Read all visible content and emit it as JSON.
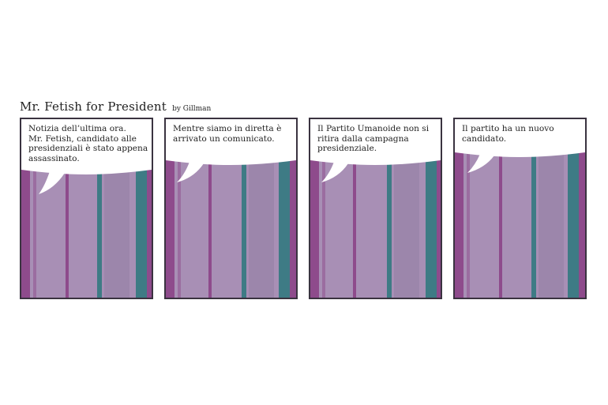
{
  "strip": {
    "title": "Mr. Fetish for President",
    "byline": "by Gillman"
  },
  "colors": {
    "wall": "#a88fb5",
    "stripe_purple": "#8e4b8c",
    "stripe_teal": "#3e7b85",
    "panel_border": "#3a3340",
    "balloon": "#ffffff"
  },
  "panels": [
    {
      "caption": "Notizia dell’ultima ora.\nMr. Fetish, candidato alle presidenziali è stato appena assassinato."
    },
    {
      "caption": "Mentre siamo in diretta è arrivato un comunicato."
    },
    {
      "caption": "Il Partito Umanoide non si ritira dalla campagna presidenziale."
    },
    {
      "caption": "Il partito ha un nuovo candidato."
    }
  ]
}
